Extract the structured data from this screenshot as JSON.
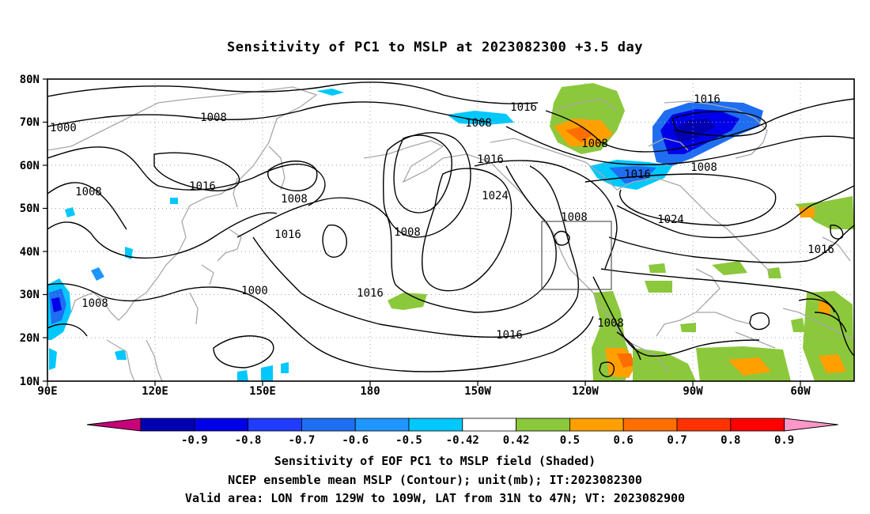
{
  "title": "Sensitivity of PC1 to MSLP at 2023082300 +3.5 day",
  "axes": {
    "lat_labels": [
      "80N",
      "70N",
      "60N",
      "50N",
      "40N",
      "30N",
      "20N",
      "10N"
    ],
    "lon_labels": [
      "90E",
      "120E",
      "150E",
      "180",
      "150W",
      "120W",
      "90W",
      "60W"
    ]
  },
  "contour_labels": [
    "1000",
    "1008",
    "1016",
    "1008",
    "1016",
    "1008",
    "1008",
    "1016",
    "1008",
    "1016",
    "1008",
    "1016",
    "1008",
    "1024",
    "1008",
    "1016",
    "1000",
    "1016",
    "1008",
    "1024",
    "1016",
    "1008",
    "1016"
  ],
  "colorbar": {
    "labels": [
      "-0.9",
      "-0.8",
      "-0.7",
      "-0.6",
      "-0.5",
      "-0.42",
      "0.42",
      "0.5",
      "0.6",
      "0.7",
      "0.8",
      "0.9"
    ],
    "colors": [
      "#0000b0",
      "#0000e8",
      "#1f3cff",
      "#1f6ef2",
      "#1f96ff",
      "#00c8ff",
      "#ffffff",
      "#8cc83c",
      "#ffa000",
      "#ff6e00",
      "#ff3200",
      "#ff0000"
    ],
    "low_end_color": "#c8007a",
    "high_end_color": "#ff96c8"
  },
  "captions": [
    "Sensitivity of EOF PC1 to MSLP field (Shaded)",
    "NCEP ensemble mean MSLP (Contour); unit(mb); IT:2023082300",
    "Valid area: LON from 129W to 109W, LAT from 31N to 47N; VT: 2023082900"
  ]
}
